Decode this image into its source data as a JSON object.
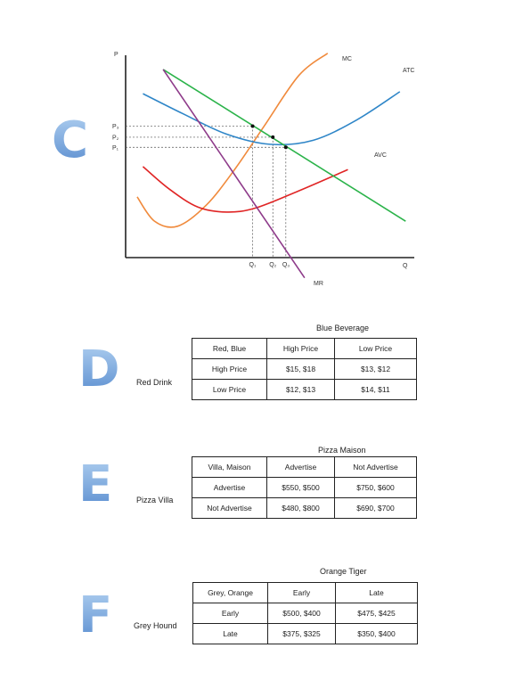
{
  "sections": {
    "c": {
      "letter": "C"
    },
    "d": {
      "letter": "D",
      "column_player": "Blue Beverage",
      "row_player": "Red Drink",
      "header": [
        "Red, Blue",
        "High Price",
        "Low Price"
      ],
      "rows": [
        [
          "High Price",
          "$15, $18",
          "$13, $12"
        ],
        [
          "Low Price",
          "$12, $13",
          "$14, $11"
        ]
      ]
    },
    "e": {
      "letter": "E",
      "column_player": "Pizza Maison",
      "row_player": "Pizza Villa",
      "header": [
        "Villa, Maison",
        "Advertise",
        "Not Advertise"
      ],
      "rows": [
        [
          "Advertise",
          "$550, $500",
          "$750, $600"
        ],
        [
          "Not Advertise",
          "$480, $800",
          "$690, $700"
        ]
      ]
    },
    "f": {
      "letter": "F",
      "column_player": "Orange Tiger",
      "row_player": "Grey Hound",
      "header": [
        "Grey, Orange",
        "Early",
        "Late"
      ],
      "rows": [
        [
          "Early",
          "$500, $400",
          "$475, $425"
        ],
        [
          "Late",
          "$375, $325",
          "$350, $400"
        ]
      ]
    }
  },
  "chart_data": {
    "type": "line",
    "xlabel": "Q",
    "ylabel": "P",
    "xlim": [
      0,
      10
    ],
    "ylim": [
      0,
      10
    ],
    "series": [
      {
        "name": "MC",
        "color": "#f08a3c",
        "points": [
          [
            0.4,
            3.0
          ],
          [
            1.0,
            1.8
          ],
          [
            1.8,
            1.55
          ],
          [
            2.8,
            2.6
          ],
          [
            3.8,
            4.4
          ],
          [
            4.8,
            6.5
          ],
          [
            6.0,
            9.0
          ],
          [
            7.0,
            10.1
          ]
        ]
      },
      {
        "name": "ATC",
        "color": "#2f86c8",
        "points": [
          [
            0.6,
            8.1
          ],
          [
            2.0,
            7.1
          ],
          [
            3.5,
            6.1
          ],
          [
            5.0,
            5.6
          ],
          [
            6.5,
            5.8
          ],
          [
            8.0,
            6.8
          ],
          [
            9.5,
            8.2
          ]
        ]
      },
      {
        "name": "AVC",
        "color": "#e02525",
        "points": [
          [
            0.6,
            4.5
          ],
          [
            1.5,
            3.4
          ],
          [
            2.5,
            2.5
          ],
          [
            3.5,
            2.25
          ],
          [
            4.5,
            2.45
          ],
          [
            6.0,
            3.3
          ],
          [
            7.7,
            4.35
          ]
        ]
      },
      {
        "name": "",
        "color": "#2bb34a",
        "points": [
          [
            1.3,
            9.3
          ],
          [
            9.7,
            1.8
          ]
        ]
      },
      {
        "name": "MR",
        "color": "#8e3b8a",
        "points": [
          [
            1.3,
            9.3
          ],
          [
            6.2,
            -1.0
          ]
        ]
      }
    ],
    "price_labels": [
      "P₃",
      "P₂",
      "P₁"
    ],
    "price_levels": [
      6.5,
      5.95,
      5.45
    ],
    "quantity_labels": [
      "Q₁",
      "Q₂",
      "Q₃"
    ],
    "quantity_levels": [
      4.4,
      5.1,
      5.55
    ],
    "curve_labels": [
      "MC",
      "ATC",
      "AVC",
      "MR"
    ]
  }
}
